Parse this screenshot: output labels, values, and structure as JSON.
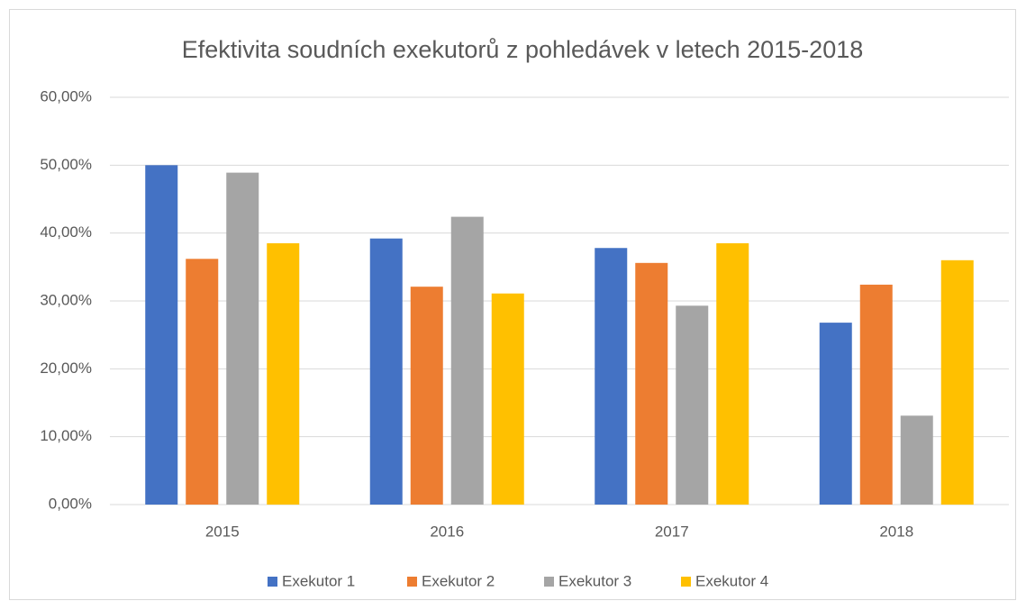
{
  "chart_data": {
    "type": "bar",
    "title": "Efektivita soudních exekutorů z pohledávek v letech 2015-2018",
    "categories": [
      "2015",
      "2016",
      "2017",
      "2018"
    ],
    "series": [
      {
        "name": "Exekutor 1",
        "color": "#4472c4",
        "values": [
          50.0,
          39.2,
          37.8,
          26.8
        ]
      },
      {
        "name": "Exekutor 2",
        "color": "#ed7d31",
        "values": [
          36.2,
          32.1,
          35.6,
          32.4
        ]
      },
      {
        "name": "Exekutor 3",
        "color": "#a5a5a5",
        "values": [
          48.9,
          42.4,
          29.3,
          13.1
        ]
      },
      {
        "name": "Exekutor 4",
        "color": "#ffc000",
        "values": [
          38.5,
          31.1,
          38.5,
          36.0
        ]
      }
    ],
    "ylim": [
      0,
      60
    ],
    "yticks": [
      {
        "value": 0,
        "label": "0,00%"
      },
      {
        "value": 10,
        "label": "10,00%"
      },
      {
        "value": 20,
        "label": "20,00%"
      },
      {
        "value": 30,
        "label": "30,00%"
      },
      {
        "value": 40,
        "label": "40,00%"
      },
      {
        "value": 50,
        "label": "50,00%"
      },
      {
        "value": 60,
        "label": "60,00%"
      }
    ],
    "grid": true,
    "legend": "bottom"
  }
}
